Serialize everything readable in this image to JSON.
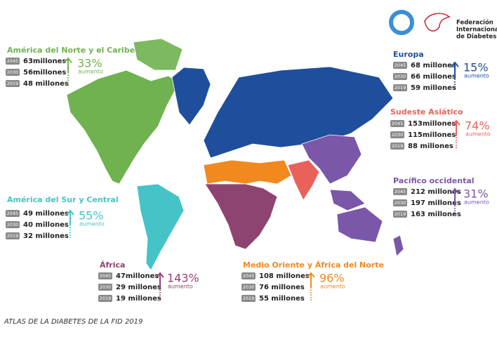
{
  "logo": {
    "org_lines": [
      "Federación",
      "Internacional",
      "de Diabetes"
    ]
  },
  "regions": [
    {
      "name": "América del Norte y el Caribe",
      "color": "#6fb24f",
      "rows": [
        {
          "year": "2045",
          "amount": "63millones"
        },
        {
          "year": "2030",
          "amount": "56millones"
        },
        {
          "year": "2019",
          "amount": "48 millones"
        }
      ],
      "increase": "33%",
      "increase_label": "aumento"
    },
    {
      "name": "Europa",
      "color": "#1f4f9c",
      "rows": [
        {
          "year": "2045",
          "amount": "68 millones"
        },
        {
          "year": "2030",
          "amount": "66 millones"
        },
        {
          "year": "2019",
          "amount": "59 millones"
        }
      ],
      "increase": "15%",
      "increase_label": "aumento"
    },
    {
      "name": "Sudeste Asiático",
      "color": "#e8625a",
      "rows": [
        {
          "year": "2045",
          "amount": "153millones"
        },
        {
          "year": "2030",
          "amount": "115millones"
        },
        {
          "year": "2019",
          "amount": "88 millones"
        }
      ],
      "increase": "74%",
      "increase_label": "aumento"
    },
    {
      "name": "Pacífico occidental",
      "color": "#7a57a8",
      "rows": [
        {
          "year": "2045",
          "amount": "212 millones"
        },
        {
          "year": "2030",
          "amount": "197 millones"
        },
        {
          "year": "2019",
          "amount": "163 millones"
        }
      ],
      "increase": "31%",
      "increase_label": "aumento"
    },
    {
      "name": "América del Sur y Central",
      "color": "#45c3c6",
      "rows": [
        {
          "year": "2045",
          "amount": "49  millones"
        },
        {
          "year": "2030",
          "amount": "40  millones"
        },
        {
          "year": "2019",
          "amount": "32  millones"
        }
      ],
      "increase": "55%",
      "increase_label": "aumento"
    },
    {
      "name": "África",
      "color": "#8e4470",
      "rows": [
        {
          "year": "2045",
          "amount": "47millones"
        },
        {
          "year": "2030",
          "amount": "29 millones"
        },
        {
          "year": "2019",
          "amount": "19 millones"
        }
      ],
      "increase": "143%",
      "increase_label": "aumento"
    },
    {
      "name": "Medio Oriente y África del Norte",
      "color": "#f0891c",
      "rows": [
        {
          "year": "2045",
          "amount": "108 millones"
        },
        {
          "year": "2030",
          "amount": "76  millones"
        },
        {
          "year": "2019",
          "amount": "55  millones"
        }
      ],
      "increase": "96%",
      "increase_label": "aumento"
    }
  ],
  "footer": "ATLAS DE LA DIABETES DE LA FID 2019"
}
